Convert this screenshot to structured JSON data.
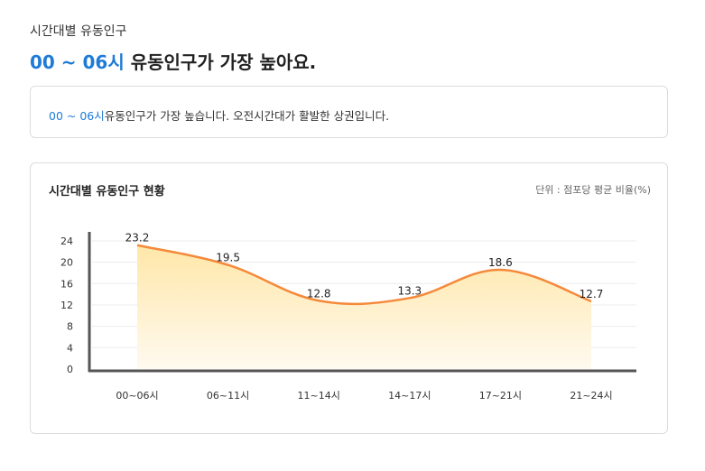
{
  "header": {
    "section_label": "시간대별 유동인구",
    "headline_highlight": "00 ~ 06시",
    "headline_rest": " 유동인구가 가장 높아요."
  },
  "summary": {
    "highlight": "00 ~ 06시",
    "text": "유동인구가 가장 높습니다. 오전시간대가 활발한 상권입니다."
  },
  "chart": {
    "title": "시간대별 유동인구 현황",
    "unit": "단위 : 점포당 평균 비율(%)"
  },
  "colors": {
    "accent": "#1f7bd6",
    "line": "#f5893a",
    "area_top": "#ffe7a8",
    "area_bottom": "#fffaf0",
    "axis": "#555555"
  },
  "chart_data": {
    "type": "area",
    "categories": [
      "00~06시",
      "06~11시",
      "11~14시",
      "14~17시",
      "17~21시",
      "21~24시"
    ],
    "values": [
      23.2,
      19.5,
      12.8,
      13.3,
      18.6,
      12.7
    ],
    "yticks": [
      0,
      4,
      8,
      12,
      16,
      20,
      24
    ],
    "ylim": [
      0,
      24
    ],
    "title": "시간대별 유동인구 현황",
    "xlabel": "",
    "ylabel": "",
    "grid": true
  }
}
